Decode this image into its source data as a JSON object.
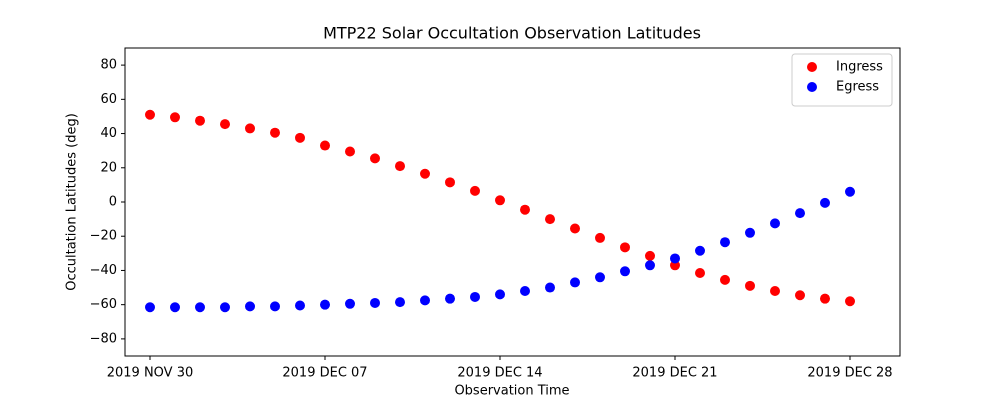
{
  "chart_data": {
    "type": "scatter",
    "title": "MTP22 Solar Occultation Observation Latitudes",
    "x_label": "Observation Time",
    "y_label": "Occultation Latitudes (deg)",
    "x": [
      "2019-11-30",
      "2019-12-01",
      "2019-12-02",
      "2019-12-03",
      "2019-12-04",
      "2019-12-05",
      "2019-12-06",
      "2019-12-07",
      "2019-12-08",
      "2019-12-09",
      "2019-12-10",
      "2019-12-11",
      "2019-12-12",
      "2019-12-13",
      "2019-12-14",
      "2019-12-15",
      "2019-12-16",
      "2019-12-17",
      "2019-12-18",
      "2019-12-19",
      "2019-12-20",
      "2019-12-21",
      "2019-12-22",
      "2019-12-23",
      "2019-12-24",
      "2019-12-25",
      "2019-12-26",
      "2019-12-27",
      "2019-12-28"
    ],
    "series": [
      {
        "name": "Ingress",
        "color": "#ff0000",
        "values": [
          51,
          49.5,
          47.5,
          45.5,
          43,
          40.5,
          37.5,
          33,
          29.5,
          25.5,
          21,
          16.5,
          11.5,
          6.5,
          1,
          -4.5,
          -10,
          -15.5,
          -21,
          -26.5,
          -31.5,
          -37,
          -41.5,
          -45.5,
          -49,
          -52,
          -54.5,
          -56.5,
          -58
        ]
      },
      {
        "name": "Egress",
        "color": "#0000ff",
        "values": [
          -61.5,
          -61.5,
          -61.5,
          -61.5,
          -61,
          -61,
          -60.5,
          -60,
          -59.5,
          -59,
          -58.5,
          -57.5,
          -56.5,
          -55.5,
          -54,
          -52,
          -50,
          -47,
          -44,
          -40.5,
          -37,
          -33,
          -28.5,
          -23.5,
          -18,
          -12.5,
          -6.5,
          -0.5,
          6
        ]
      }
    ],
    "xlim": [
      "2019-11-29",
      "2019-12-30"
    ],
    "xticks": [
      {
        "value": "2019-11-30",
        "label": "2019 NOV 30"
      },
      {
        "value": "2019-12-07",
        "label": "2019 DEC 07"
      },
      {
        "value": "2019-12-14",
        "label": "2019 DEC 14"
      },
      {
        "value": "2019-12-21",
        "label": "2019 DEC 21"
      },
      {
        "value": "2019-12-28",
        "label": "2019 DEC 28"
      }
    ],
    "ylim": [
      -90,
      90
    ],
    "yticks": [
      {
        "value": -80,
        "label": "−80"
      },
      {
        "value": -60,
        "label": "−60"
      },
      {
        "value": -40,
        "label": "−40"
      },
      {
        "value": -20,
        "label": "−20"
      },
      0,
      20,
      40,
      60,
      80
    ],
    "legend": "upper right"
  }
}
